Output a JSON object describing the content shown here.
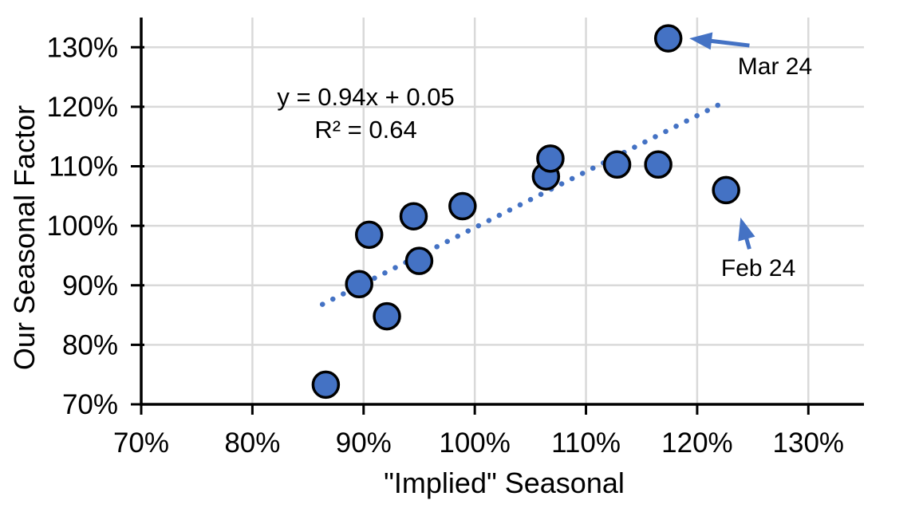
{
  "chart_data": {
    "type": "scatter",
    "title": "",
    "xlabel": "\"Implied\" Seasonal",
    "ylabel": "Our Seasonal Factor",
    "xlim": [
      70,
      135
    ],
    "ylim": [
      70,
      135
    ],
    "units": "percent",
    "grid": true,
    "legend_position": "none",
    "x_tick_values": [
      70,
      80,
      90,
      100,
      110,
      120,
      130
    ],
    "x_tick_labels": [
      "70%",
      "80%",
      "90%",
      "100%",
      "110%",
      "120%",
      "130%"
    ],
    "y_tick_values": [
      70,
      80,
      90,
      100,
      110,
      120,
      130
    ],
    "y_tick_labels": [
      "70%",
      "80%",
      "90%",
      "100%",
      "110%",
      "120%",
      "130%"
    ],
    "series": [
      {
        "name": "seasonal-factor-points",
        "points": [
          {
            "x": 86.6,
            "y": 73.3
          },
          {
            "x": 89.6,
            "y": 90.2
          },
          {
            "x": 90.5,
            "y": 98.5
          },
          {
            "x": 92.1,
            "y": 84.8
          },
          {
            "x": 94.5,
            "y": 101.6
          },
          {
            "x": 95.0,
            "y": 94.1
          },
          {
            "x": 98.9,
            "y": 103.3
          },
          {
            "x": 106.4,
            "y": 108.3
          },
          {
            "x": 106.8,
            "y": 111.3
          },
          {
            "x": 112.8,
            "y": 110.3
          },
          {
            "x": 116.5,
            "y": 110.3
          },
          {
            "x": 117.4,
            "y": 131.5,
            "label": "Mar 24"
          },
          {
            "x": 122.6,
            "y": 106.0,
            "label": "Feb 24"
          }
        ]
      }
    ],
    "trendline": {
      "style": "dotted",
      "equation": "y = 0.94x + 0.05",
      "r_squared": "R² = 0.64",
      "x1": 86.3,
      "y1": 86.8,
      "x2": 121.9,
      "y2": 120.3,
      "label_cx": 90.2,
      "label_cy": 118.9
    },
    "annotations": [
      {
        "label": "Mar 24",
        "text_x": 127.0,
        "text_y": 126.7,
        "arrow_tail_x": 124.7,
        "arrow_tail_y": 130.3,
        "arrow_head_x": 119.3,
        "arrow_head_y": 131.5
      },
      {
        "label": "Feb 24",
        "text_x": 125.5,
        "text_y": 92.8,
        "arrow_tail_x": 124.7,
        "arrow_tail_y": 96.1,
        "arrow_head_x": 123.9,
        "arrow_head_y": 101.4
      }
    ],
    "colors": {
      "point_fill": "#4472C4",
      "point_stroke": "#000000",
      "trend": "#4472C4",
      "arrow": "#4472C4",
      "grid": "#D9D9D9",
      "axis": "#000000",
      "text": "#000000"
    }
  }
}
